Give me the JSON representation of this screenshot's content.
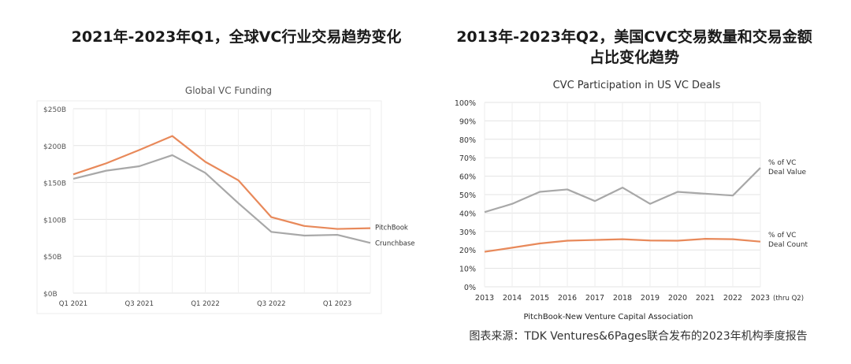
{
  "headings": {
    "left": "2021年-2023年Q1，全球VC行业交易趋势变化",
    "right_line1": "2013年-2023年Q2，美国CVC交易数量和交易金额",
    "right_line2": "占比变化趋势"
  },
  "source_note": "图表来源：TDK Ventures&6Pages联合发布的2023年机构季度报告",
  "chart_data": [
    {
      "type": "line",
      "title": "Global VC Funding",
      "xlabel": "",
      "ylabel": "",
      "x_tick_labels": [
        "Q1 2021",
        "Q3 2021",
        "Q1 2022",
        "Q3 2022",
        "Q1 2023"
      ],
      "y_tick_labels": [
        "$0B",
        "$50B",
        "$100B",
        "$150B",
        "$200B",
        "$250B"
      ],
      "ylim": [
        0,
        250
      ],
      "x_points": 10,
      "grid": true,
      "series": [
        {
          "name": "PitchBook",
          "color": "#e8895a",
          "values": [
            161,
            176,
            194,
            213,
            178,
            153,
            103,
            91,
            87,
            88
          ]
        },
        {
          "name": "Crunchbase",
          "color": "#a8a8a8",
          "values": [
            155,
            166,
            172,
            187,
            163,
            122,
            83,
            78,
            79,
            68
          ]
        }
      ]
    },
    {
      "type": "line",
      "title": "CVC Participation in US VC Deals",
      "xlabel": "PitchBook-New Venture Capital Association",
      "ylabel": "",
      "categories": [
        "2013",
        "2014",
        "2015",
        "2016",
        "2017",
        "2018",
        "2019",
        "2020",
        "2021",
        "2022",
        "2023"
      ],
      "x_suffix": "(thru Q2)",
      "y_tick_labels": [
        "0%",
        "10%",
        "20%",
        "30%",
        "40%",
        "50%",
        "60%",
        "70%",
        "80%",
        "90%",
        "100%"
      ],
      "ylim": [
        0,
        100
      ],
      "grid": true,
      "series": [
        {
          "name_line1": "% of VC",
          "name_line2": "Deal Value",
          "color": "#a8a8a8",
          "values": [
            40.5,
            45,
            51.5,
            52.8,
            46.5,
            53.8,
            45,
            51.5,
            50.5,
            49.5,
            64.5
          ]
        },
        {
          "name_line1": "% of VC",
          "name_line2": "Deal Count",
          "color": "#e8895a",
          "values": [
            19,
            21.2,
            23.5,
            25,
            25.4,
            25.8,
            25.1,
            25,
            26,
            25.8,
            24.5
          ]
        }
      ]
    }
  ]
}
